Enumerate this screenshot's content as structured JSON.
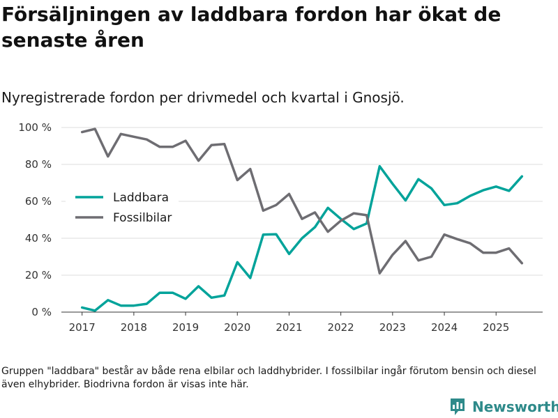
{
  "title": "Försäljningen av laddbara fordon har ökat de senaste åren",
  "subtitle": "Nyregistrerade fordon per drivmedel och kvartal i Gnosjö.",
  "footnote": "Gruppen \"laddbara\" består av både rena elbilar och laddhybrider. I fossilbilar ingår förutom bensin och diesel även elhybrider. Biodrivna fordon är visas inte här.",
  "brand": {
    "name": "Newsworthy"
  },
  "chart_data": {
    "type": "line",
    "title": "Försäljningen av laddbara fordon har ökat de senaste åren",
    "subtitle": "Nyregistrerade fordon per drivmedel och kvartal i Gnosjö.",
    "xlabel": "",
    "ylabel": "",
    "x": [
      2017.0,
      2017.25,
      2017.5,
      2017.75,
      2018.0,
      2018.25,
      2018.5,
      2018.75,
      2019.0,
      2019.25,
      2019.5,
      2019.75,
      2020.0,
      2020.25,
      2020.5,
      2020.75,
      2021.0,
      2021.25,
      2021.5,
      2021.75,
      2022.0,
      2022.25,
      2022.5,
      2022.75,
      2023.0,
      2023.25,
      2023.5,
      2023.75,
      2024.0,
      2024.25,
      2024.5,
      2024.75,
      2025.0,
      2025.25,
      2025.5
    ],
    "xlim": [
      2016.6,
      2025.9
    ],
    "ylim": [
      0,
      100
    ],
    "xticks": [
      2017,
      2018,
      2019,
      2020,
      2021,
      2022,
      2023,
      2024,
      2025
    ],
    "xtick_labels": [
      "2017",
      "2018",
      "2019",
      "2020",
      "2021",
      "2022",
      "2023",
      "2024",
      "2025"
    ],
    "yticks": [
      0,
      20,
      40,
      60,
      80,
      100
    ],
    "ytick_labels": [
      "0 %",
      "20 %",
      "40 %",
      "60 %",
      "80 %",
      "100 %"
    ],
    "grid": "horizontal",
    "legend_position": "middle-left",
    "series": [
      {
        "name": "Laddbara",
        "color": "#00a39a",
        "values": [
          2.5,
          0.8,
          6.5,
          3.5,
          3.5,
          4.5,
          10.5,
          10.5,
          7.2,
          14.0,
          7.8,
          9.0,
          27.0,
          18.5,
          42.0,
          42.2,
          31.5,
          40.0,
          46.0,
          56.5,
          50.5,
          45.0,
          48.0,
          79.0,
          69.5,
          60.5,
          72.0,
          67.0,
          58.0,
          59.0,
          63.0,
          66.0,
          68.0,
          65.7,
          73.5
        ]
      },
      {
        "name": "Fossilbilar",
        "color": "#6e6d72",
        "values": [
          97.5,
          99.2,
          84.3,
          96.5,
          95.0,
          93.5,
          89.5,
          89.5,
          92.8,
          82.0,
          90.5,
          91.0,
          71.5,
          77.5,
          55.0,
          58.0,
          64.0,
          50.5,
          54.0,
          43.5,
          49.5,
          53.5,
          52.5,
          21.0,
          31.0,
          38.5,
          28.0,
          30.0,
          42.0,
          39.5,
          37.3,
          32.2,
          32.2,
          34.5,
          26.5
        ]
      }
    ]
  }
}
